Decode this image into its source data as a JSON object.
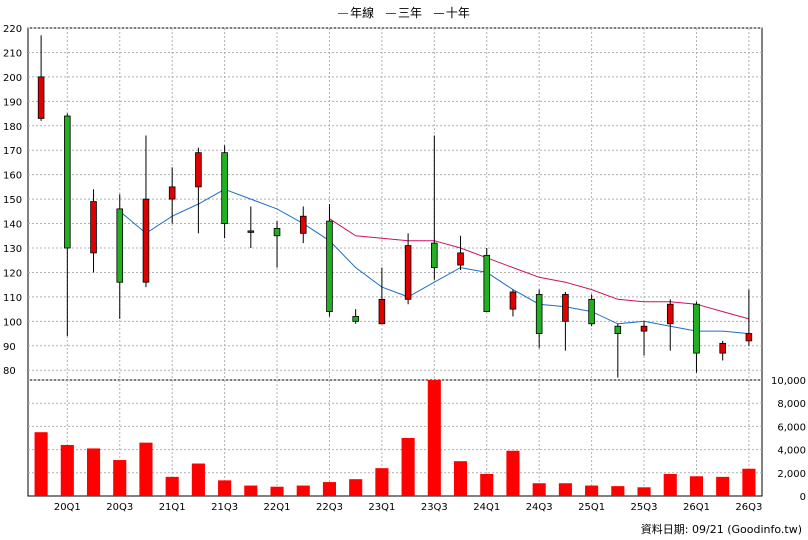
{
  "legend": [
    {
      "label": "年線",
      "color": "#1f6fc8"
    },
    {
      "label": "三年",
      "color": "#d01010"
    },
    {
      "label": "十年",
      "color": "#8b1a5a"
    }
  ],
  "footer": "資料日期: 09/21 (Goodinfo.tw)",
  "colors": {
    "up": "#e00000",
    "down": "#22b022",
    "volume": "#ff0000",
    "ma_year": "#1f6fc8",
    "ma_3y": "#d01060",
    "grid": "#b0b0b0"
  },
  "chart_data": [
    {
      "type": "candlestick",
      "ylim": [
        76,
        220
      ],
      "yticks": [
        80,
        90,
        100,
        110,
        120,
        130,
        140,
        150,
        160,
        170,
        180,
        190,
        200,
        210,
        220
      ],
      "grid": true,
      "x_tick_labels": [
        "20Q1",
        "20Q3",
        "21Q1",
        "21Q3",
        "22Q1",
        "22Q3",
        "23Q1",
        "23Q3",
        "24Q1",
        "24Q3",
        "25Q1",
        "25Q3",
        "26Q1",
        "26Q3"
      ],
      "candles": [
        {
          "o": 183,
          "h": 217,
          "l": 182,
          "c": 200
        },
        {
          "o": 184,
          "h": 185,
          "l": 94,
          "c": 130
        },
        {
          "o": 128,
          "h": 154,
          "l": 120,
          "c": 149
        },
        {
          "o": 146,
          "h": 152,
          "l": 101,
          "c": 116
        },
        {
          "o": 116,
          "h": 176,
          "l": 114,
          "c": 150
        },
        {
          "o": 150,
          "h": 163,
          "l": 140,
          "c": 155
        },
        {
          "o": 155,
          "h": 171,
          "l": 136,
          "c": 169
        },
        {
          "o": 169,
          "h": 172,
          "l": 134,
          "c": 140
        },
        {
          "o": 137,
          "h": 147,
          "l": 130,
          "c": 137
        },
        {
          "o": 138,
          "h": 141,
          "l": 122,
          "c": 135
        },
        {
          "o": 136,
          "h": 147,
          "l": 132,
          "c": 143
        },
        {
          "o": 141,
          "h": 148,
          "l": 102,
          "c": 104
        },
        {
          "o": 102,
          "h": 105,
          "l": 99,
          "c": 100
        },
        {
          "o": 99,
          "h": 122,
          "l": 99,
          "c": 109
        },
        {
          "o": 109,
          "h": 136,
          "l": 107,
          "c": 131
        },
        {
          "o": 132,
          "h": 176,
          "l": 117,
          "c": 122
        },
        {
          "o": 123,
          "h": 135,
          "l": 121,
          "c": 128
        },
        {
          "o": 127,
          "h": 130,
          "l": 104,
          "c": 104
        },
        {
          "o": 105,
          "h": 113,
          "l": 102,
          "c": 112
        },
        {
          "o": 111,
          "h": 113,
          "l": 89,
          "c": 95
        },
        {
          "o": 100,
          "h": 112,
          "l": 88,
          "c": 111
        },
        {
          "o": 109,
          "h": 111,
          "l": 98,
          "c": 99
        },
        {
          "o": 98,
          "h": 99,
          "l": 77,
          "c": 95
        },
        {
          "o": 96,
          "h": 100,
          "l": 86,
          "c": 98
        },
        {
          "o": 99,
          "h": 109,
          "l": 88,
          "c": 107
        },
        {
          "o": 107,
          "h": 108,
          "l": 79,
          "c": 87
        },
        {
          "o": 87,
          "h": 92,
          "l": 84,
          "c": 91
        },
        {
          "o": 92,
          "h": 113,
          "l": 90,
          "c": 95
        }
      ],
      "ma_year": [
        null,
        null,
        null,
        145,
        136,
        143,
        148,
        154,
        150,
        146,
        140,
        133,
        122,
        114,
        110,
        116,
        122,
        120,
        113,
        107,
        106,
        104,
        99,
        100,
        98,
        96,
        96,
        95
      ],
      "ma_3y": [
        null,
        null,
        null,
        null,
        null,
        null,
        null,
        null,
        null,
        null,
        null,
        142,
        135,
        134,
        133,
        133,
        130,
        126,
        122,
        118,
        116,
        113,
        109,
        108,
        108,
        107,
        104,
        101
      ]
    },
    {
      "type": "bar",
      "ylim": [
        0,
        10000
      ],
      "yticks": [
        0,
        2000,
        4000,
        6000,
        8000,
        10000
      ],
      "ytick_labels": [
        "0",
        "2,000",
        "4,000",
        "6,000",
        "8,000",
        "10,000"
      ],
      "values": [
        5500,
        4400,
        4100,
        3100,
        4600,
        1650,
        2800,
        1350,
        900,
        800,
        900,
        1200,
        1450,
        2400,
        5000,
        10200,
        3000,
        1900,
        3900,
        1100,
        1100,
        900,
        850,
        750,
        1900,
        1700,
        1650,
        2350
      ]
    }
  ]
}
